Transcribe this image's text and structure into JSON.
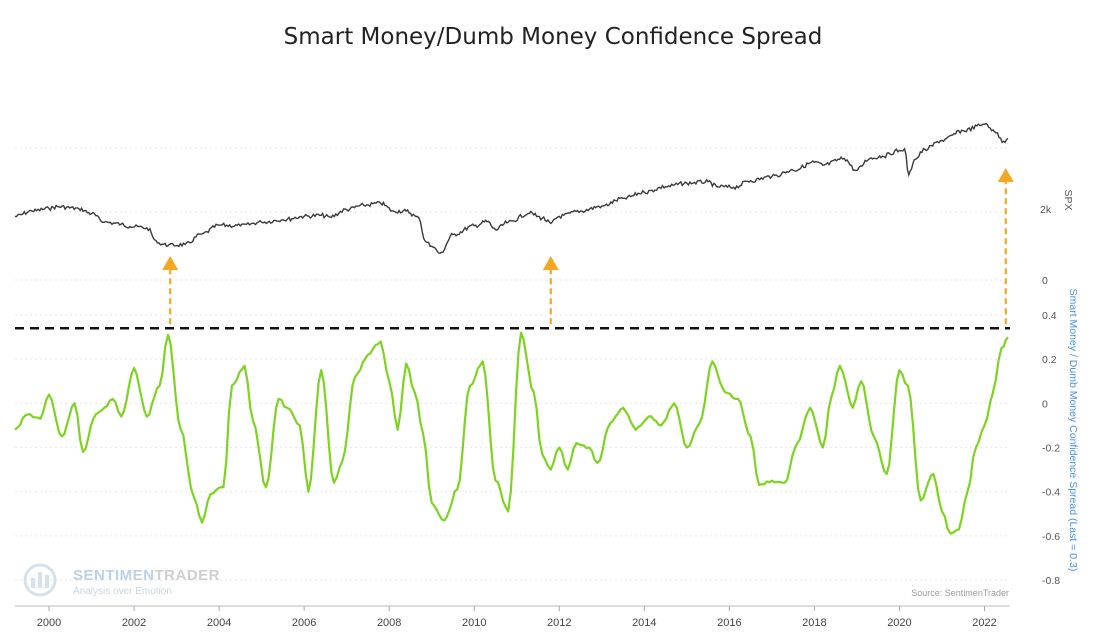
{
  "title": "Smart Money/Dumb Money Confidence Spread",
  "watermark": {
    "brand_main": "SENTIMEN",
    "brand_accent": "TRADER",
    "tagline": "Analysis over Emotion"
  },
  "source": "Source: SentimenTrader",
  "colors": {
    "spx_line": "#3a3a3c",
    "spread_line": "#7ed321",
    "arrow": "#f5a623",
    "threshold": "#111111",
    "right_axis_label": "#4a90d9",
    "grid": "#e6e6e6"
  },
  "chart_data": {
    "type": "line",
    "title": "Smart Money/Dumb Money Confidence Spread",
    "x_range": [
      1999.2,
      2022.6
    ],
    "x_ticks": [
      "2000",
      "2002",
      "2004",
      "2006",
      "2008",
      "2010",
      "2012",
      "2014",
      "2016",
      "2018",
      "2020",
      "2022"
    ],
    "panels": [
      {
        "name": "SPX",
        "axis_label": "SPX",
        "scale": "log",
        "tick_labels": [
          "2k"
        ],
        "tick_values": [
          2000
        ],
        "y_range": [
          600,
          5000
        ],
        "series": {
          "x": [
            1999.2,
            1999.6,
            2000.0,
            2000.2,
            2000.7,
            2001.0,
            2001.3,
            2001.7,
            2001.9,
            2002.3,
            2002.55,
            2002.8,
            2003.2,
            2003.6,
            2004.0,
            2004.5,
            2005.0,
            2005.5,
            2006.0,
            2006.4,
            2006.6,
            2007.0,
            2007.4,
            2007.8,
            2008.1,
            2008.4,
            2008.7,
            2008.85,
            2009.0,
            2009.2,
            2009.5,
            2010.0,
            2010.3,
            2010.5,
            2010.8,
            2011.3,
            2011.6,
            2011.8,
            2012.0,
            2012.5,
            2013.0,
            2013.5,
            2014.0,
            2014.5,
            2015.0,
            2015.5,
            2015.7,
            2016.1,
            2016.5,
            2017.0,
            2017.5,
            2018.0,
            2018.2,
            2018.7,
            2018.98,
            2019.3,
            2019.6,
            2020.0,
            2020.12,
            2020.22,
            2020.35,
            2020.6,
            2021.0,
            2021.5,
            2022.0,
            2022.2,
            2022.45,
            2022.55
          ],
          "y": [
            1280,
            1380,
            1430,
            1470,
            1430,
            1330,
            1180,
            1150,
            1110,
            1090,
            880,
            850,
            860,
            1000,
            1130,
            1120,
            1180,
            1220,
            1280,
            1300,
            1270,
            1410,
            1500,
            1540,
            1380,
            1380,
            1250,
            900,
            840,
            760,
            990,
            1120,
            1190,
            1060,
            1180,
            1340,
            1250,
            1160,
            1280,
            1380,
            1480,
            1650,
            1800,
            1950,
            2050,
            2090,
            1950,
            1930,
            2120,
            2250,
            2460,
            2750,
            2640,
            2900,
            2450,
            2900,
            3000,
            3250,
            3330,
            2300,
            2850,
            3300,
            3750,
            4300,
            4700,
            4350,
            3700,
            3860
          ]
        }
      },
      {
        "name": "Smart Money / Dumb Money Confidence Spread",
        "axis_label": "Smart Money / Dumb Money Confidence Spread (Last = 0.3)",
        "tick_labels": [
          "-0.8",
          "-0.6",
          "-0.4",
          "-0.2",
          "0",
          "0.2",
          "0.4"
        ],
        "tick_values": [
          -0.8,
          -0.6,
          -0.4,
          -0.2,
          0,
          0.2,
          0.4
        ],
        "extra_tick": "0",
        "y_range": [
          -0.8,
          0.4
        ],
        "threshold": 0.34,
        "series": {
          "x": [
            1999.2,
            1999.5,
            1999.8,
            2000.0,
            2000.3,
            2000.6,
            2000.8,
            2001.1,
            2001.3,
            2001.5,
            2001.7,
            2002.0,
            2002.3,
            2002.6,
            2002.8,
            2003.1,
            2003.4,
            2003.6,
            2003.8,
            2004.1,
            2004.3,
            2004.6,
            2004.8,
            2005.1,
            2005.4,
            2005.6,
            2005.9,
            2006.1,
            2006.4,
            2006.7,
            2006.9,
            2007.2,
            2007.5,
            2007.8,
            2008.0,
            2008.2,
            2008.4,
            2008.6,
            2008.8,
            2009.0,
            2009.3,
            2009.6,
            2009.9,
            2010.2,
            2010.5,
            2010.8,
            2011.1,
            2011.4,
            2011.6,
            2011.8,
            2012.0,
            2012.2,
            2012.4,
            2012.7,
            2012.9,
            2013.2,
            2013.5,
            2013.8,
            2014.1,
            2014.4,
            2014.7,
            2015.0,
            2015.3,
            2015.6,
            2015.9,
            2016.2,
            2016.5,
            2016.7,
            2017.0,
            2017.3,
            2017.6,
            2017.9,
            2018.2,
            2018.4,
            2018.6,
            2018.9,
            2019.1,
            2019.4,
            2019.7,
            2020.0,
            2020.2,
            2020.5,
            2020.8,
            2021.0,
            2021.2,
            2021.4,
            2021.6,
            2021.8,
            2022.0,
            2022.2,
            2022.4,
            2022.55
          ],
          "y": [
            -0.12,
            -0.05,
            -0.07,
            0.04,
            -0.15,
            0.0,
            -0.22,
            -0.05,
            -0.02,
            0.02,
            -0.06,
            0.16,
            -0.06,
            0.08,
            0.31,
            -0.12,
            -0.42,
            -0.54,
            -0.41,
            -0.38,
            0.08,
            0.17,
            -0.08,
            -0.38,
            0.02,
            -0.02,
            -0.1,
            -0.4,
            0.15,
            -0.36,
            -0.26,
            0.12,
            0.22,
            0.28,
            0.1,
            -0.12,
            0.18,
            0.05,
            -0.14,
            -0.45,
            -0.53,
            -0.39,
            0.08,
            0.19,
            -0.35,
            -0.49,
            0.32,
            0.05,
            -0.23,
            -0.3,
            -0.2,
            -0.3,
            -0.18,
            -0.2,
            -0.27,
            -0.09,
            -0.02,
            -0.12,
            -0.06,
            -0.1,
            0.0,
            -0.2,
            -0.09,
            0.19,
            0.05,
            0.02,
            -0.15,
            -0.37,
            -0.35,
            -0.36,
            -0.18,
            -0.02,
            -0.2,
            0.03,
            0.17,
            -0.02,
            0.1,
            -0.15,
            -0.32,
            0.15,
            0.08,
            -0.44,
            -0.32,
            -0.49,
            -0.59,
            -0.57,
            -0.4,
            -0.2,
            -0.1,
            0.05,
            0.25,
            0.3
          ]
        }
      }
    ],
    "annotations": [
      {
        "type": "arrow",
        "x": 2002.85,
        "label": ""
      },
      {
        "type": "arrow",
        "x": 2011.8,
        "label": ""
      },
      {
        "type": "arrow",
        "x": 2022.5,
        "label": ""
      }
    ]
  }
}
